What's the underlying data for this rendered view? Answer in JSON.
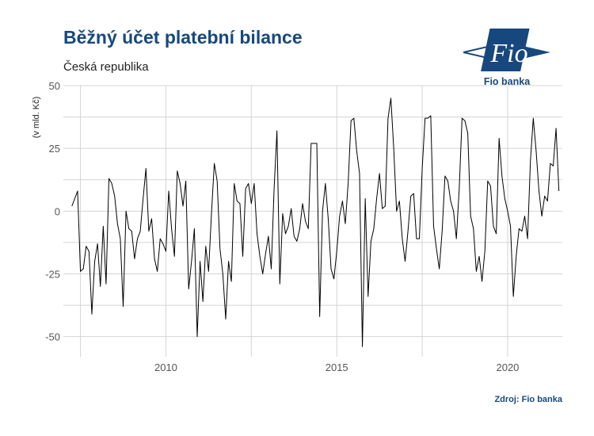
{
  "chart_data": {
    "type": "line",
    "title": "Běžný účet platební bilance",
    "subtitle": "Česká republika",
    "ylabel": "(v mld. Kč)",
    "xlabel": "",
    "ylim": [
      -58,
      50
    ],
    "xlim": [
      2007.0,
      2021.6
    ],
    "y_ticks": [
      -50,
      -25,
      0,
      25,
      50
    ],
    "y_tick_labels": [
      "-50",
      "-25",
      "0",
      "25",
      "50"
    ],
    "x_ticks": [
      2010,
      2015,
      2020
    ],
    "x_tick_labels": [
      "2010",
      "2015",
      "2020"
    ],
    "grid": true,
    "series": [
      {
        "start": 2007.25,
        "step": 0.0833333,
        "color": "#000000",
        "values": [
          2,
          5,
          8,
          -24,
          -23,
          -14,
          -16,
          -41,
          -20,
          -13,
          -30,
          -6,
          -29,
          13,
          11,
          6,
          -5,
          -11,
          -38,
          0,
          -7,
          -8,
          -19,
          -11,
          -8,
          5,
          17,
          -8,
          -3,
          -19,
          -24,
          -11,
          -13,
          -16,
          8,
          -7,
          -18,
          16,
          11,
          2,
          12,
          -31,
          -20,
          -7,
          -50,
          -20,
          -36,
          -14,
          -24,
          -1,
          19,
          12,
          -15,
          -25,
          -43,
          -20,
          -28,
          11,
          4,
          3,
          -18,
          9,
          11,
          3,
          11,
          -9,
          -18,
          -25,
          -17,
          -10,
          -23,
          9,
          32,
          -29,
          -1,
          -9,
          -6,
          1,
          -10,
          -12,
          -7,
          3,
          -4,
          -7,
          27,
          27,
          27,
          -42,
          0,
          11,
          -3,
          -23,
          -27,
          -16,
          -2,
          4,
          -5,
          11,
          36,
          37,
          24,
          15,
          -54,
          5,
          -34,
          -12,
          -7,
          5,
          15,
          1,
          2,
          37,
          45,
          25,
          0,
          4,
          -11,
          -20,
          -8,
          6,
          7,
          -11,
          -11,
          17,
          37,
          37,
          38,
          -6,
          -15,
          -23,
          -8,
          14,
          12,
          4,
          0,
          -11,
          9,
          37,
          36,
          31,
          -2,
          -7,
          -24,
          -18,
          -28,
          -16,
          12,
          10,
          -6,
          -9,
          29,
          14,
          5,
          0,
          -6,
          -34,
          -18,
          -7,
          -8,
          -2,
          -11,
          20,
          37,
          24,
          8,
          -2,
          6,
          4,
          19,
          18,
          33,
          8
        ]
      }
    ]
  },
  "logo": {
    "brand": "Fio",
    "caption": "Fio banka"
  },
  "source": "Zdroj: Fio banka"
}
